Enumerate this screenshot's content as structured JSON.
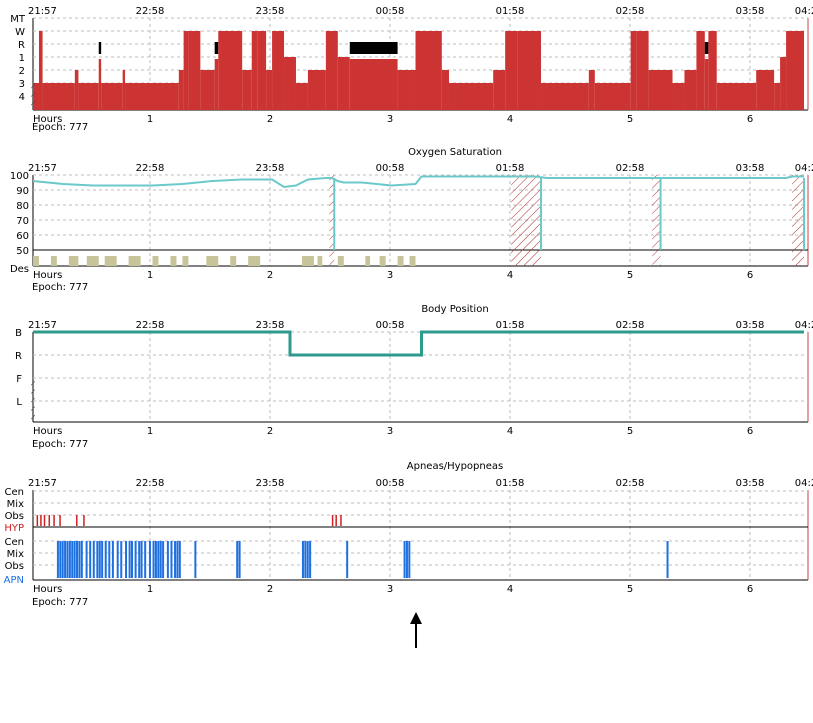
{
  "common": {
    "clock_labels": [
      "21:57",
      "22:58",
      "23:58",
      "00:58",
      "01:58",
      "02:58",
      "03:58",
      "04:2"
    ],
    "hour_labels": [
      "1",
      "2",
      "3",
      "4",
      "5",
      "6"
    ],
    "hours_label": "Hours",
    "epoch_label": "Epoch: 777",
    "total_hours": 6.45,
    "cursor_hour": 3.17,
    "colors": {
      "hypnogram": "#cc3333",
      "spo2": "#6cc9c9",
      "desat": "#c8c49a",
      "position": "#2e9a8c",
      "hyp": "#cc2222",
      "apn": "#1e6fe0",
      "cursor": "#c94444",
      "grid": "#bdbdbd"
    }
  },
  "chart_data": [
    {
      "type": "area",
      "name": "hypnogram",
      "title": "",
      "y_categories": [
        "MT",
        "W",
        "R",
        "1",
        "2",
        "3",
        "4"
      ],
      "x_unit": "hours",
      "xlim": [
        0,
        6.45
      ],
      "segments": [
        [
          0.0,
          0.05,
          "3"
        ],
        [
          0.05,
          0.08,
          "W"
        ],
        [
          0.08,
          0.35,
          "3"
        ],
        [
          0.35,
          0.38,
          "2"
        ],
        [
          0.38,
          0.55,
          "3"
        ],
        [
          0.55,
          0.57,
          "R"
        ],
        [
          0.57,
          0.75,
          "3"
        ],
        [
          0.75,
          0.77,
          "2"
        ],
        [
          0.77,
          1.22,
          "3"
        ],
        [
          1.22,
          1.26,
          "2"
        ],
        [
          1.26,
          1.3,
          "W"
        ],
        [
          1.3,
          1.4,
          "W"
        ],
        [
          1.4,
          1.52,
          "2"
        ],
        [
          1.52,
          1.55,
          "R"
        ],
        [
          1.55,
          1.75,
          "W"
        ],
        [
          1.75,
          1.83,
          "2"
        ],
        [
          1.83,
          1.88,
          "W"
        ],
        [
          1.88,
          1.95,
          "W"
        ],
        [
          1.95,
          2.0,
          "2"
        ],
        [
          2.0,
          2.1,
          "W"
        ],
        [
          2.1,
          2.2,
          "1"
        ],
        [
          2.2,
          2.3,
          "3"
        ],
        [
          2.3,
          2.45,
          "2"
        ],
        [
          2.45,
          2.55,
          "W"
        ],
        [
          2.55,
          2.65,
          "1"
        ],
        [
          2.65,
          3.05,
          "R"
        ],
        [
          3.05,
          3.2,
          "2"
        ],
        [
          3.2,
          3.42,
          "W"
        ],
        [
          3.42,
          3.48,
          "2"
        ],
        [
          3.48,
          3.85,
          "3"
        ],
        [
          3.85,
          3.95,
          "2"
        ],
        [
          3.95,
          4.05,
          "W"
        ],
        [
          4.05,
          4.25,
          "W"
        ],
        [
          4.25,
          4.65,
          "3"
        ],
        [
          4.65,
          4.7,
          "2"
        ],
        [
          4.7,
          5.0,
          "3"
        ],
        [
          5.0,
          5.05,
          "W"
        ],
        [
          5.05,
          5.15,
          "W"
        ],
        [
          5.15,
          5.35,
          "2"
        ],
        [
          5.35,
          5.45,
          "3"
        ],
        [
          5.45,
          5.55,
          "2"
        ],
        [
          5.55,
          5.62,
          "W"
        ],
        [
          5.62,
          5.65,
          "R"
        ],
        [
          5.65,
          5.72,
          "W"
        ],
        [
          5.72,
          6.05,
          "3"
        ],
        [
          6.05,
          6.2,
          "2"
        ],
        [
          6.2,
          6.25,
          "3"
        ],
        [
          6.25,
          6.3,
          "1"
        ],
        [
          6.3,
          6.45,
          "W"
        ]
      ]
    },
    {
      "type": "line",
      "name": "spo2",
      "title": "Oxygen Saturation",
      "ylabel": "",
      "y_ticks": [
        "100",
        "90",
        "80",
        "70",
        "60",
        "50"
      ],
      "extra_label": "Des",
      "ylim": [
        40,
        100
      ],
      "x_unit": "hours",
      "series": [
        {
          "x": [
            0,
            0.25,
            0.5,
            0.75,
            1.0,
            1.25,
            1.5,
            1.75,
            2.0,
            2.1,
            2.2,
            2.3,
            2.45,
            2.5,
            2.55,
            2.6,
            2.75,
            3.0,
            3.2,
            3.25,
            3.5,
            3.75,
            4.0,
            4.1,
            4.2,
            4.3,
            4.5,
            4.75,
            5.0,
            5.1,
            5.2,
            5.25,
            5.5,
            5.75,
            6.0,
            6.1,
            6.3,
            6.35,
            6.45
          ],
          "y": [
            96,
            94,
            93,
            93,
            93,
            94,
            96,
            97,
            97,
            92,
            93,
            97,
            98,
            98,
            96,
            95,
            95,
            93,
            94,
            99,
            99,
            99,
            99,
            99,
            99,
            98,
            98,
            98,
            98,
            98,
            98,
            98,
            98,
            98,
            98,
            98,
            98,
            99,
            99
          ]
        }
      ],
      "artifact_hours": [
        [
          2.48,
          2.52
        ],
        [
          4.0,
          4.25
        ],
        [
          5.18,
          5.25
        ],
        [
          6.35,
          6.45
        ]
      ],
      "desat_events_hours": [
        [
          0.0,
          0.05
        ],
        [
          0.15,
          0.2
        ],
        [
          0.3,
          0.38
        ],
        [
          0.45,
          0.55
        ],
        [
          0.6,
          0.7
        ],
        [
          0.8,
          0.9
        ],
        [
          1.0,
          1.05
        ],
        [
          1.15,
          1.2
        ],
        [
          1.25,
          1.3
        ],
        [
          1.45,
          1.55
        ],
        [
          1.65,
          1.7
        ],
        [
          1.8,
          1.9
        ],
        [
          2.25,
          2.35
        ],
        [
          2.38,
          2.42
        ],
        [
          2.55,
          2.6
        ],
        [
          2.78,
          2.82
        ],
        [
          2.9,
          2.95
        ],
        [
          3.05,
          3.1
        ],
        [
          3.15,
          3.2
        ]
      ]
    },
    {
      "type": "line",
      "name": "body-position",
      "title": "Body Position",
      "y_categories": [
        "B",
        "R",
        "F",
        "L"
      ],
      "x_unit": "hours",
      "segments": [
        [
          0.0,
          2.15,
          "B"
        ],
        [
          2.15,
          3.25,
          "R"
        ],
        [
          3.25,
          6.45,
          "B"
        ]
      ]
    },
    {
      "type": "bar",
      "name": "apneas-hypopneas",
      "title": "Apneas/Hypopneas",
      "hyp_rows": [
        "Cen",
        "Mix",
        "Obs"
      ],
      "hyp_label": "HYP",
      "apn_rows": [
        "Cen",
        "Mix",
        "Obs"
      ],
      "apn_label": "APN",
      "x_unit": "hours",
      "hyp_events_hours": [
        0.03,
        0.06,
        0.09,
        0.13,
        0.17,
        0.22,
        0.36,
        0.42,
        2.5,
        2.53,
        2.57
      ],
      "apn_events_hours": [
        0.2,
        0.22,
        0.24,
        0.26,
        0.28,
        0.3,
        0.32,
        0.34,
        0.36,
        0.38,
        0.4,
        0.44,
        0.47,
        0.5,
        0.53,
        0.55,
        0.57,
        0.6,
        0.63,
        0.66,
        0.7,
        0.73,
        0.77,
        0.8,
        0.82,
        0.85,
        0.88,
        0.9,
        0.93,
        0.97,
        1.0,
        1.02,
        1.04,
        1.06,
        1.08,
        1.12,
        1.15,
        1.18,
        1.2,
        1.22,
        1.35,
        1.7,
        1.72,
        2.25,
        2.27,
        2.29,
        2.31,
        2.62,
        3.1,
        3.12,
        3.14,
        5.3
      ]
    }
  ]
}
